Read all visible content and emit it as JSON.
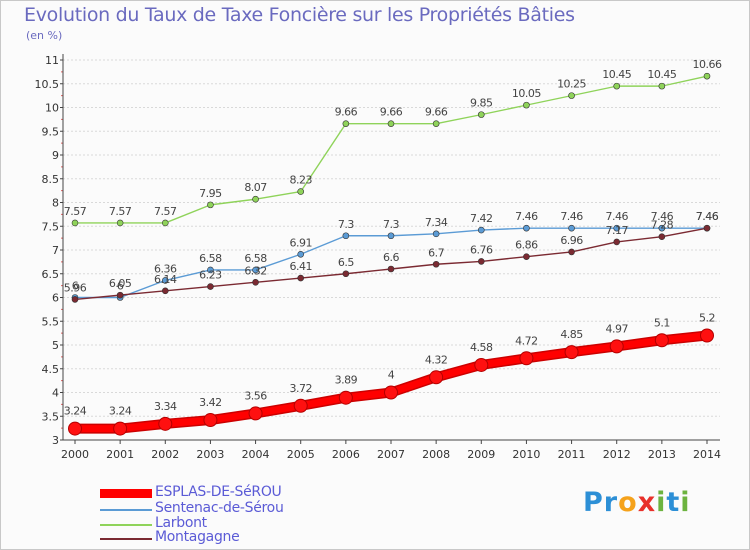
{
  "title": "Evolution du Taux de Taxe Foncière sur les Propriétés Bâties",
  "subtitle": "(en %)",
  "logo": {
    "letters": [
      "P",
      "r",
      "o",
      "x",
      "i",
      "t",
      "i"
    ],
    "colors": [
      "#2c8fd6",
      "#2c8fd6",
      "#f5a21b",
      "#e8302a",
      "#6cb33f",
      "#2c8fd6",
      "#6cb33f"
    ]
  },
  "chart_data": {
    "type": "line",
    "x": [
      "2000",
      "2001",
      "2002",
      "2003",
      "2004",
      "2005",
      "2006",
      "2007",
      "2008",
      "2009",
      "2010",
      "2011",
      "2012",
      "2013",
      "2014"
    ],
    "ylim": [
      3,
      11
    ],
    "yticks": [
      "3",
      "3.5",
      "4",
      "4.5",
      "5",
      "5.5",
      "6",
      "6.5",
      "7",
      "7.5",
      "8",
      "8.5",
      "9",
      "9.5",
      "10",
      "10.5",
      "11"
    ],
    "grid": "horizontal",
    "legend_position": "bottom-left",
    "series": [
      {
        "name": "ESPLAS-DE-SéROU",
        "color": "#ff0000",
        "values": [
          3.24,
          3.24,
          3.34,
          3.42,
          3.56,
          3.72,
          3.89,
          4,
          4.32,
          4.58,
          4.72,
          4.85,
          4.97,
          5.1,
          5.2
        ],
        "labels": [
          "3.24",
          "3.24",
          "3.34",
          "3.42",
          "3.56",
          "3.72",
          "3.89",
          "4",
          "4.32",
          "4.58",
          "4.72",
          "4.85",
          "4.97",
          "5.1",
          "5.2"
        ]
      },
      {
        "name": "Sentenac-de-Sérou",
        "color": "#5b9bd5",
        "values": [
          6,
          6,
          6.36,
          6.58,
          6.58,
          6.91,
          7.3,
          7.3,
          7.34,
          7.42,
          7.46,
          7.46,
          7.46,
          7.46,
          7.46
        ],
        "labels": [
          "6",
          "6",
          "6.36",
          "6.58",
          "6.58",
          "6.91",
          "7.3",
          "7.3",
          "7.34",
          "7.42",
          "7.46",
          "7.46",
          "7.46",
          "7.46",
          "7.46"
        ]
      },
      {
        "name": "Larbont",
        "color": "#8fd35a",
        "values": [
          7.57,
          7.57,
          7.57,
          7.95,
          8.07,
          8.23,
          9.66,
          9.66,
          9.66,
          9.85,
          10.05,
          10.25,
          10.45,
          10.45,
          10.66
        ],
        "labels": [
          "7.57",
          "7.57",
          "7.57",
          "7.95",
          "8.07",
          "8.23",
          "9.66",
          "9.66",
          "9.66",
          "9.85",
          "10.05",
          "10.25",
          "10.45",
          "10.45",
          "10.66"
        ]
      },
      {
        "name": "Montagagne",
        "color": "#7b2a32",
        "values": [
          5.96,
          6.05,
          6.14,
          6.23,
          6.32,
          6.41,
          6.5,
          6.6,
          6.7,
          6.76,
          6.86,
          6.96,
          7.17,
          7.28,
          7.46
        ],
        "labels": [
          "5.96",
          "6.05",
          "6.14",
          "6.23",
          "6.32",
          "6.41",
          "6.5",
          "6.6",
          "6.7",
          "6.76",
          "6.86",
          "6.96",
          "7.17",
          "7.28",
          "7.46"
        ]
      }
    ]
  }
}
